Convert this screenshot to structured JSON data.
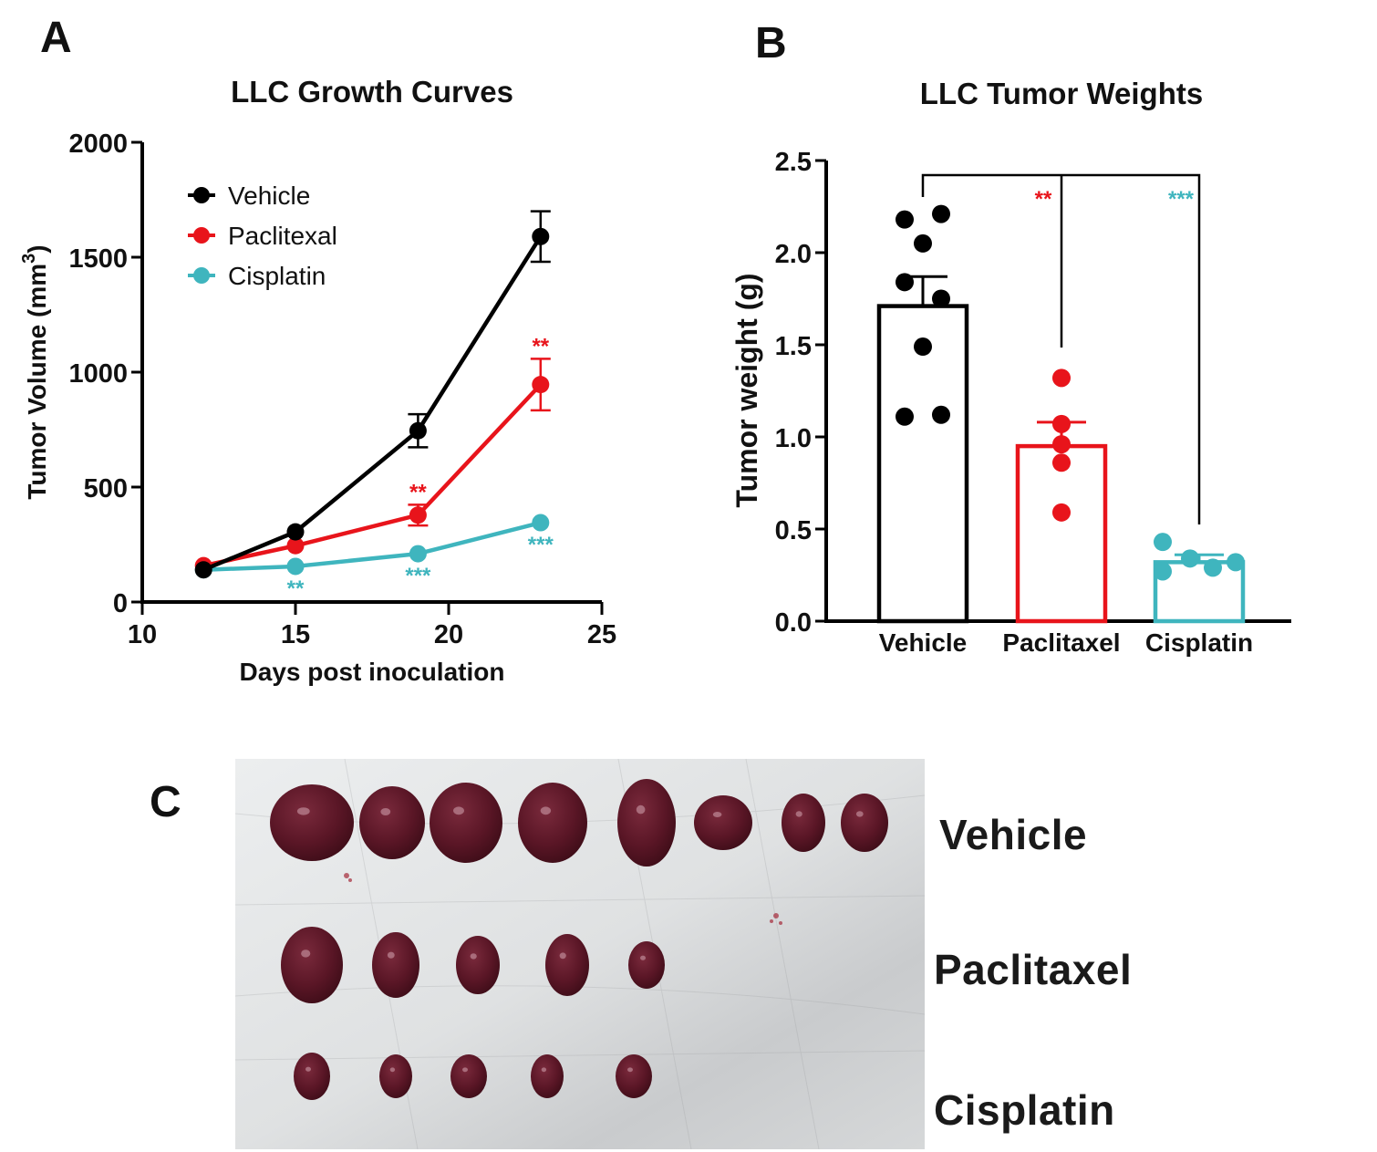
{
  "panels": {
    "a_letter": "A",
    "b_letter": "B",
    "c_letter": "C"
  },
  "colors": {
    "vehicle": "#000000",
    "paclitaxel": "#e8141b",
    "cisplatin": "#3fb5be"
  },
  "chart_data": [
    {
      "type": "line",
      "title": "LLC Growth Curves",
      "xlabel": "Days post inoculation",
      "ylabel": "Tumor Volume (mm³)",
      "xlim": [
        10,
        25
      ],
      "ylim": [
        0,
        2000
      ],
      "xticks": [
        10,
        15,
        20,
        25
      ],
      "yticks": [
        0,
        500,
        1000,
        1500,
        2000
      ],
      "legend_position": "top-left",
      "x": [
        12,
        15,
        19,
        23
      ],
      "series": [
        {
          "name": "Vehicle",
          "color": "#000000",
          "values": [
            140,
            305,
            745,
            1590
          ],
          "error": [
            0,
            0,
            72,
            110
          ],
          "annotations": [
            "",
            "",
            "",
            ""
          ]
        },
        {
          "name": "Paclitexal",
          "color": "#e8141b",
          "values": [
            158,
            245,
            378,
            946
          ],
          "error": [
            0,
            0,
            45,
            112
          ],
          "annotations": [
            "",
            "",
            "**",
            "**"
          ]
        },
        {
          "name": "Cisplatin",
          "color": "#3fb5be",
          "values": [
            140,
            155,
            210,
            345
          ],
          "error": [
            0,
            0,
            0,
            0
          ],
          "annotations": [
            "",
            "**",
            "***",
            "***"
          ]
        }
      ]
    },
    {
      "type": "bar",
      "title": "LLC Tumor Weights",
      "xlabel": "",
      "ylabel": "Tumor weight (g)",
      "ylim": [
        0,
        2.5
      ],
      "yticks": [
        "0.0",
        "0.5",
        "1.0",
        "1.5",
        "2.0",
        "2.5"
      ],
      "categories": [
        "Vehicle",
        "Paclitaxel",
        "Cisplatin"
      ],
      "values": [
        1.71,
        0.95,
        0.32
      ],
      "sem": [
        0.16,
        0.13,
        0.04
      ],
      "colors": [
        "#000000",
        "#e8141b",
        "#3fb5be"
      ],
      "points": [
        [
          2.18,
          2.21,
          2.05,
          1.84,
          1.75,
          1.49,
          1.11,
          1.12
        ],
        [
          1.32,
          1.07,
          0.96,
          0.86,
          0.59
        ],
        [
          0.43,
          0.27,
          0.34,
          0.29,
          0.32
        ]
      ],
      "significance": [
        {
          "from": "Vehicle",
          "to": "Paclitaxel",
          "label": "**",
          "color": "#e8141b"
        },
        {
          "from": "Vehicle",
          "to": "Cisplatin",
          "label": "***",
          "color": "#3fb5be"
        }
      ]
    }
  ],
  "photo": {
    "description": "Excised LLC tumors on white paper towel",
    "rows": [
      {
        "label": "Vehicle",
        "count": 8
      },
      {
        "label": "Paclitaxel",
        "count": 5
      },
      {
        "label": "Cisplatin",
        "count": 5
      }
    ]
  }
}
